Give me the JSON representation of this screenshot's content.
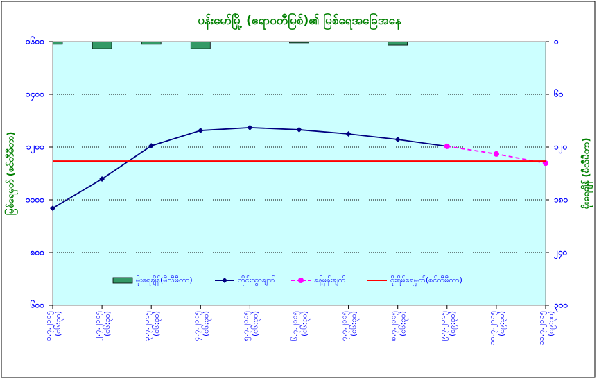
{
  "chart_data": {
    "type": "line",
    "title": "ပန်းမော်မြို့ (ဧရာဝတီမြစ်)၏ မြစ်ရေအခြေအနေ",
    "y_label": "မြစ်ရေမှတ် (စင်တီမီတာ)",
    "y2_label": "မိုးရေချိန် (မီလီမီတာ)",
    "categories": [
      "၁.၇.၂၀၁၅",
      "၂.၇.၂၀၁၅",
      "၃.၇.၂၀၁၅",
      "၄.၇.၂၀၁၅",
      "၅.၇.၂၀၁၅",
      "၆.၇.၂၀၁၅",
      "၇.၇.၂၀၁၅",
      "၈.၇.၂၀၁၅",
      "၉.၇.၂၀၁၅",
      "၁၀.၇.၂၀၁၅",
      "၁၁.၇.၂၀၁၅"
    ],
    "category_times": [
      "(၀၆:၃၀)",
      "(၀၆:၃၀)",
      "(၀၆:၃၀)",
      "(၀၆:၃၀)",
      "(၀၆:၃၀)",
      "(၀၆:၃၀)",
      "(၀၆:၃၀)",
      "(၀၆:၃၀)",
      "(၀၉:၃၀)",
      "(၀၉:၃၀)",
      "(၀၉:၃၀)"
    ],
    "series": [
      {
        "name": "မိုးရေချိန်(မီလီမီတာ)",
        "kind": "bar",
        "axis": "y2",
        "color": "#339966",
        "values": [
          3,
          8,
          3,
          8,
          0,
          1.5,
          0,
          4,
          0,
          0,
          0
        ]
      },
      {
        "name": "တိုင်းထွာချက်",
        "kind": "line",
        "color": "#000080",
        "marker": "diamond",
        "values": [
          968,
          1079,
          1205,
          1263,
          1274,
          1266,
          1250,
          1229,
          1203,
          null,
          null
        ]
      },
      {
        "name": "ခန့်မှန်းချက်",
        "kind": "line",
        "color": "#ff00ff",
        "dashed": true,
        "marker": "circle",
        "values": [
          null,
          null,
          null,
          null,
          null,
          null,
          null,
          null,
          1203,
          1174,
          1139
        ]
      },
      {
        "name": "စိုးရိမ်ရေမှတ်(စင်တီမီတာ)",
        "kind": "line",
        "color": "#ff0000",
        "values": [
          1147,
          1147,
          1147,
          1147,
          1147,
          1147,
          1147,
          1147,
          1147,
          1147,
          1147
        ]
      }
    ],
    "ylim": [
      600,
      1600
    ],
    "yticks": [
      {
        "value": 600,
        "label": "၆၀၀"
      },
      {
        "value": 800,
        "label": "၈၀၀"
      },
      {
        "value": 1000,
        "label": "၁၀၀၀"
      },
      {
        "value": 1200,
        "label": "၁၂၀၀"
      },
      {
        "value": 1400,
        "label": "၁၄၀၀"
      },
      {
        "value": 1600,
        "label": "၁၆၀၀"
      }
    ],
    "y2lim": [
      300,
      0
    ],
    "y2ticks": [
      {
        "value": 300,
        "label": "၃၀၀"
      },
      {
        "value": 240,
        "label": "၂၄၀"
      },
      {
        "value": 180,
        "label": "၁၈၀"
      },
      {
        "value": 120,
        "label": "၁၂၀"
      },
      {
        "value": 60,
        "label": "၆၀"
      },
      {
        "value": 0,
        "label": "၀"
      }
    ],
    "grid": true,
    "legend": "bottom"
  }
}
